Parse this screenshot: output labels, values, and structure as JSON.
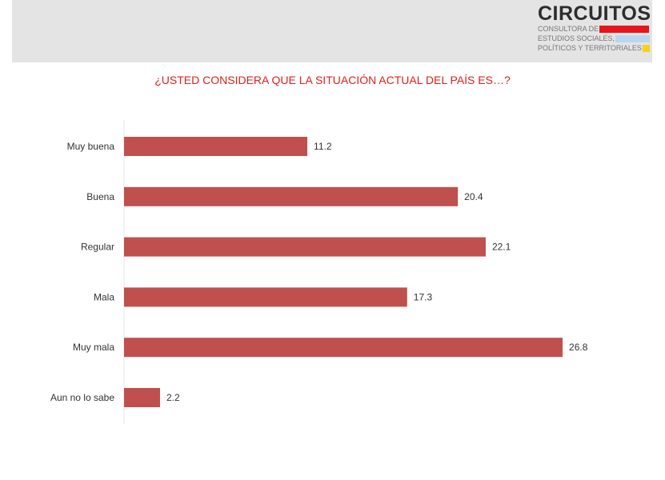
{
  "logo": {
    "name": "CIRCUITOS",
    "lines": [
      "CONSULTORA DE",
      "ESTUDIOS SOCIALES,",
      "POLÍTICOS Y TERRITORIALES"
    ],
    "colors": [
      "#e8141b",
      "#b9d6f0",
      "#f5d21c"
    ]
  },
  "chart_data": {
    "type": "bar",
    "orientation": "horizontal",
    "title": "¿USTED CONSIDERA QUE LA SITUACIÓN ACTUAL DEL PAÍS ES…?",
    "categories": [
      "Muy buena",
      "Buena",
      "Regular",
      "Mala",
      "Muy mala",
      "Aun no lo sabe"
    ],
    "values": [
      11.2,
      20.4,
      22.1,
      17.3,
      26.8,
      2.2
    ],
    "value_labels": [
      "11.2",
      "20.4",
      "22.1",
      "17.3",
      "26.8",
      "2.2"
    ],
    "bar_color": "#c0504d",
    "title_color": "#e0201b",
    "grid": false,
    "legend": "none"
  }
}
